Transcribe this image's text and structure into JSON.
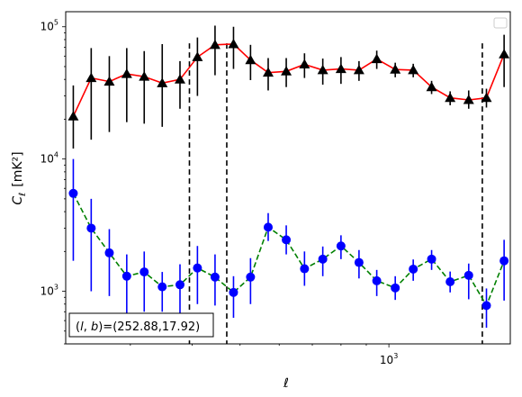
{
  "chart_data": {
    "type": "line",
    "xlabel": "ℓ",
    "ylabel_main": "C",
    "ylabel_sub": "ℓ",
    "ylabel_unit": "[mK²]",
    "xscale": "log",
    "yscale": "log",
    "xlim": [
      222,
      1760
    ],
    "ylim": [
      400,
      130000
    ],
    "grid": false,
    "legend": {
      "placement": "top-right",
      "entries": []
    },
    "x_ticks": [
      {
        "value": 1000,
        "base": "10",
        "exp": "3"
      }
    ],
    "y_ticks": [
      {
        "value": 1000,
        "base": "10",
        "exp": "3"
      },
      {
        "value": 10000,
        "base": "10",
        "exp": "4"
      },
      {
        "value": 100000,
        "base": "10",
        "exp": "5"
      }
    ],
    "vlines": [
      395,
      470,
      1545
    ],
    "annotation": {
      "parts": [
        "(",
        "l",
        ", ",
        "b",
        ")=(252.88,17.92)"
      ]
    },
    "series": [
      {
        "color": "#000000",
        "line_color": "#ff0000",
        "linestyle": "solid",
        "marker": "triangle",
        "x": [
          230,
          250,
          272,
          295,
          320,
          348,
          378,
          410,
          445,
          485,
          525,
          570,
          620,
          675,
          735,
          800,
          870,
          945,
          1030,
          1120,
          1220,
          1330,
          1450,
          1575,
          1710
        ],
        "y": [
          21000,
          41000,
          38500,
          44000,
          42000,
          37500,
          40000,
          59000,
          73000,
          74000,
          56000,
          45000,
          46000,
          52000,
          47000,
          48000,
          47000,
          57000,
          47500,
          47000,
          35000,
          29000,
          28000,
          29000,
          62000
        ],
        "yerr_low": [
          9000,
          27000,
          22500,
          25000,
          23500,
          20000,
          16000,
          29000,
          30000,
          26000,
          16500,
          12000,
          11000,
          11000,
          10500,
          11000,
          8000,
          9000,
          6000,
          5500,
          4000,
          3500,
          4000,
          4500,
          27000
        ],
        "yerr_high": [
          15000,
          28000,
          21500,
          25000,
          23500,
          36500,
          15000,
          24000,
          29000,
          26000,
          17000,
          13000,
          12000,
          11000,
          10500,
          11000,
          8000,
          9000,
          6000,
          5500,
          4000,
          3500,
          5000,
          5000,
          25000
        ]
      },
      {
        "color": "#0000ff",
        "line_color": "#008000",
        "linestyle": "dashed",
        "marker": "circle",
        "x": [
          230,
          250,
          272,
          295,
          320,
          348,
          378,
          410,
          445,
          485,
          525,
          570,
          620,
          675,
          735,
          800,
          870,
          945,
          1030,
          1120,
          1220,
          1330,
          1450,
          1575,
          1710
        ],
        "y": [
          5500,
          3000,
          1950,
          1300,
          1400,
          1080,
          1120,
          1500,
          1280,
          980,
          1280,
          3050,
          2450,
          1480,
          1750,
          2200,
          1650,
          1200,
          1060,
          1470,
          1750,
          1180,
          1320,
          780,
          1700
        ],
        "yerr_low": [
          3800,
          2000,
          1030,
          650,
          700,
          380,
          520,
          700,
          500,
          350,
          480,
          650,
          550,
          380,
          450,
          450,
          400,
          280,
          200,
          270,
          300,
          200,
          450,
          250,
          850
        ],
        "yerr_high": [
          4500,
          2000,
          1000,
          600,
          600,
          320,
          480,
          700,
          620,
          320,
          500,
          850,
          700,
          520,
          430,
          450,
          400,
          250,
          240,
          270,
          300,
          230,
          300,
          270,
          750
        ]
      }
    ]
  }
}
